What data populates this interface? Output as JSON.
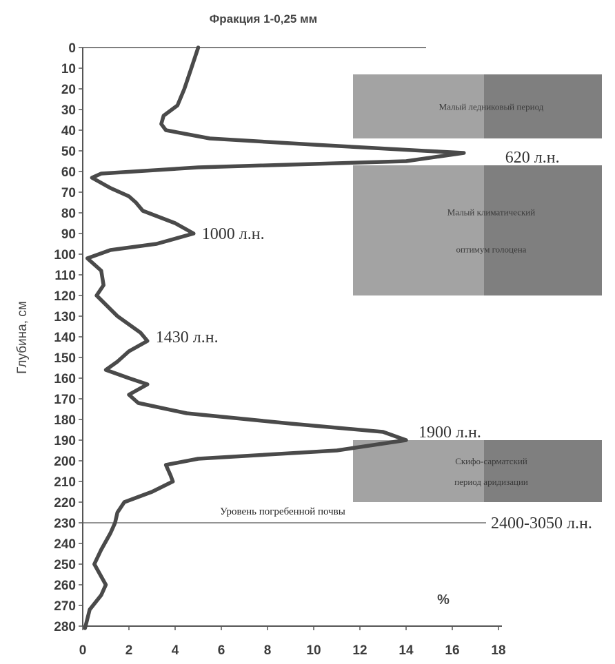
{
  "chart_data": {
    "type": "line",
    "title": "Фракция 1-0,25 мм",
    "xlabel": "",
    "unit_label": "%",
    "ylabel": "Глубина, см",
    "xlim": [
      0,
      18
    ],
    "ylim": [
      0,
      280
    ],
    "y_inverted": true,
    "x_ticks": [
      0,
      2,
      4,
      6,
      8,
      10,
      12,
      14,
      16,
      18
    ],
    "y_ticks": [
      0,
      10,
      20,
      30,
      40,
      50,
      60,
      70,
      80,
      90,
      100,
      110,
      120,
      130,
      140,
      150,
      160,
      170,
      180,
      190,
      200,
      210,
      220,
      230,
      240,
      250,
      260,
      270,
      280
    ],
    "series": [
      {
        "name": "",
        "color": "#4a4a4a",
        "x": [
          5.0,
          4.7,
          4.4,
          4.1,
          3.5,
          3.4,
          3.6,
          5.5,
          10.0,
          14.8,
          16.5,
          14.0,
          5.0,
          0.8,
          0.4,
          1.2,
          2.0,
          2.3,
          2.6,
          4.0,
          4.8,
          3.2,
          1.2,
          0.2,
          0.8,
          0.9,
          0.6,
          1.5,
          2.5,
          2.8,
          2.0,
          1.5,
          1.0,
          2.0,
          2.8,
          2.0,
          2.4,
          4.5,
          9.0,
          13.0,
          14.0,
          11.0,
          5.0,
          3.6,
          3.8,
          3.9,
          3.0,
          1.8,
          1.5,
          1.4,
          1.2,
          0.8,
          0.5,
          1.0,
          0.8,
          0.3,
          0.1
        ],
        "y": [
          0,
          10,
          20,
          28,
          33,
          37,
          40,
          44,
          47,
          50,
          51,
          55,
          58,
          61,
          63,
          68,
          72,
          75,
          79,
          85,
          90,
          95,
          98,
          102,
          108,
          115,
          120,
          130,
          138,
          142,
          147,
          152,
          156,
          160,
          163,
          168,
          172,
          177,
          182,
          186,
          190,
          195,
          199,
          202,
          207,
          210,
          215,
          220,
          225,
          230,
          235,
          243,
          250,
          260,
          265,
          272,
          281
        ]
      }
    ],
    "gridlines": false,
    "reference_line": {
      "y": 230,
      "label": "Уровень погребенной почвы",
      "age": "2400-3050 л.н."
    },
    "annotations": [
      {
        "text": "620 л.н.",
        "x": 16.5,
        "y": 51
      },
      {
        "text": "1000 л.н.",
        "x": 4.8,
        "y": 90
      },
      {
        "text": "1430 л.н.",
        "x": 2.8,
        "y": 140
      },
      {
        "text": "1900 л.н.",
        "x": 14.0,
        "y": 190
      }
    ],
    "periods": [
      {
        "y_from": 13,
        "y_to": 44,
        "lines": [
          "Малый ледниковый период"
        ]
      },
      {
        "y_from": 57,
        "y_to": 120,
        "lines": [
          "Малый климатический",
          "оптимум голоцена"
        ]
      },
      {
        "y_from": 190,
        "y_to": 220,
        "lines": [
          "Скифо-сарматский",
          "период аридизации"
        ]
      }
    ]
  },
  "colors": {
    "line": "#4a4a4a",
    "axis": "#555555",
    "period_light": "#a3a3a3",
    "period_dark": "#7f7f7f"
  }
}
